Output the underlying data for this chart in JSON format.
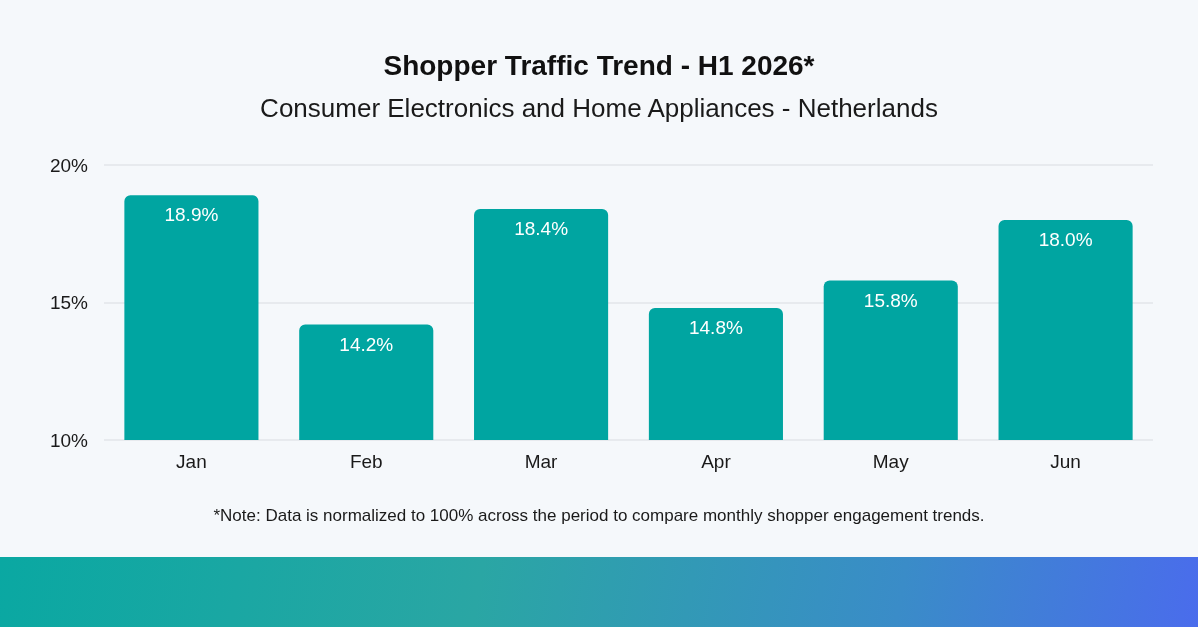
{
  "chart_data": {
    "type": "bar",
    "title": "Shopper Traffic Trend - H1 2026*",
    "subtitle": "Consumer Electronics and Home Appliances - Netherlands",
    "annotations": [
      "*Note: Data is normalized to 100% across the period to compare monthly shopper engagement trends."
    ],
    "categories": [
      "Jan",
      "Feb",
      "Mar",
      "Apr",
      "May",
      "Jun"
    ],
    "values": [
      18.9,
      14.2,
      18.4,
      14.8,
      15.8,
      18.0
    ],
    "value_labels": [
      "18.9%",
      "14.2%",
      "18.4%",
      "14.8%",
      "15.8%",
      "18.0%"
    ],
    "color": "#00a5a1",
    "ylim": [
      10,
      20
    ],
    "yticks": [
      {
        "value": 10,
        "label": "10%"
      },
      {
        "value": 15,
        "label": "15%"
      },
      {
        "value": 20,
        "label": "20%"
      }
    ],
    "grid": "y"
  }
}
